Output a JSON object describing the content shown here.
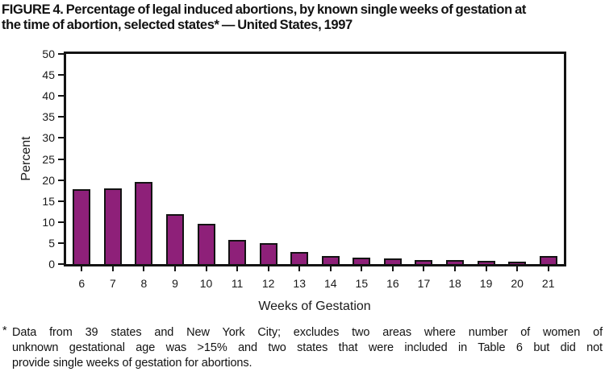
{
  "title": {
    "line1": "FIGURE 4. Percentage of legal induced abortions, by known single weeks of gestation at",
    "line2": "the time of abortion, selected states* — United States, 1997"
  },
  "chart_data": {
    "type": "bar",
    "categories": [
      "6",
      "7",
      "8",
      "9",
      "10",
      "11",
      "12",
      "13",
      "14",
      "15",
      "16",
      "17",
      "18",
      "19",
      "20",
      "21"
    ],
    "values": [
      17.8,
      18.0,
      19.6,
      11.8,
      9.6,
      5.8,
      4.9,
      2.9,
      2.0,
      1.5,
      1.3,
      1.0,
      0.9,
      0.7,
      0.6,
      1.9
    ],
    "title": "",
    "xlabel": "Weeks of Gestation",
    "ylabel": "Percent",
    "ylim": [
      0,
      50
    ],
    "yticks": [
      0,
      5,
      10,
      15,
      20,
      25,
      30,
      35,
      40,
      45,
      50
    ],
    "grid": false,
    "legend": "none",
    "bar_color": "#8E2079",
    "bar_border_color": "#131313",
    "axis_color": "#131313"
  },
  "footnote": {
    "marker": "*",
    "lines": [
      "Data from 39 states and New York City; excludes two areas where number of women of",
      "unknown gestational age was >15% and two states that were included in Table 6 but did not",
      "provide single weeks of gestation for abortions."
    ]
  }
}
